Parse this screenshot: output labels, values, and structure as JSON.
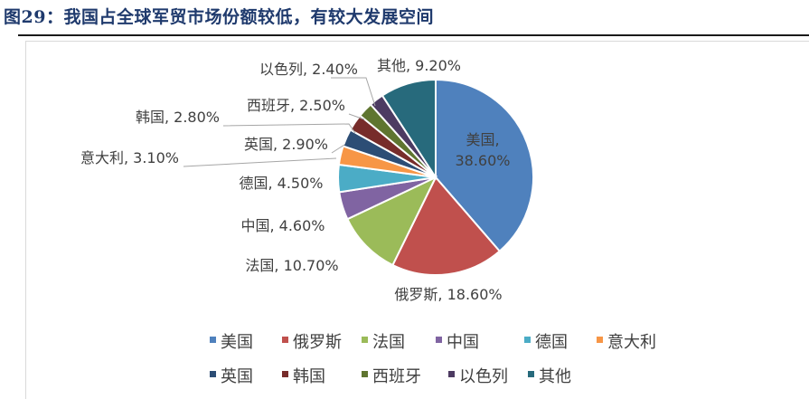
{
  "figure_title": "图29：我国占全球军贸市场份额较低，有较大发展空间",
  "chart_data": {
    "type": "pie",
    "title": "",
    "slices": [
      {
        "label": "美国",
        "value": 38.6,
        "display": "38.60%",
        "color": "#4f81bd"
      },
      {
        "label": "俄罗斯",
        "value": 18.6,
        "display": "18.60%",
        "color": "#c0504d"
      },
      {
        "label": "法国",
        "value": 10.7,
        "display": "10.70%",
        "color": "#9bbb59"
      },
      {
        "label": "中国",
        "value": 4.6,
        "display": "4.60%",
        "color": "#8064a2"
      },
      {
        "label": "德国",
        "value": 4.5,
        "display": "4.50%",
        "color": "#4bacc6"
      },
      {
        "label": "意大利",
        "value": 3.1,
        "display": "3.10%",
        "color": "#f79646"
      },
      {
        "label": "英国",
        "value": 2.9,
        "display": "2.90%",
        "color": "#2c4d75"
      },
      {
        "label": "韩国",
        "value": 2.8,
        "display": "2.80%",
        "color": "#772c2a"
      },
      {
        "label": "西班牙",
        "value": 2.5,
        "display": "2.50%",
        "color": "#5f7530"
      },
      {
        "label": "以色列",
        "value": 2.4,
        "display": "2.40%",
        "color": "#4d3b62"
      },
      {
        "label": "其他",
        "value": 9.2,
        "display": "9.20%",
        "color": "#276a7c"
      }
    ],
    "legend_position": "bottom"
  }
}
